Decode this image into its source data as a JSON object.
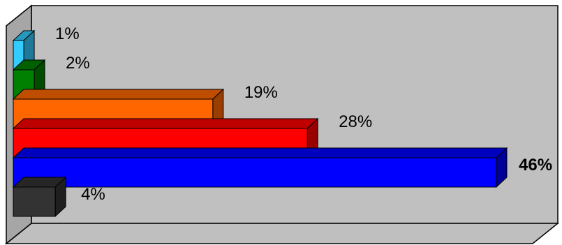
{
  "chart_data": {
    "type": "bar",
    "orientation": "horizontal",
    "style": "3d",
    "title": "",
    "xlabel": "",
    "ylabel": "",
    "xlim": [
      0,
      46
    ],
    "grid": false,
    "legend": "none",
    "categories": [
      "",
      "",
      "",
      "",
      "",
      ""
    ],
    "values": [
      1,
      2,
      19,
      28,
      46,
      4
    ],
    "labels": [
      "1%",
      "2%",
      "19%",
      "28%",
      "46%",
      "4%"
    ],
    "bold_labels": [
      false,
      false,
      false,
      false,
      true,
      false
    ],
    "colors": [
      "#33CCFF",
      "#008000",
      "#FF6600",
      "#FF0000",
      "#0000FF",
      "#333333"
    ],
    "wall_color": "#C0C0C0",
    "floor_color": "#A6A6A6"
  }
}
